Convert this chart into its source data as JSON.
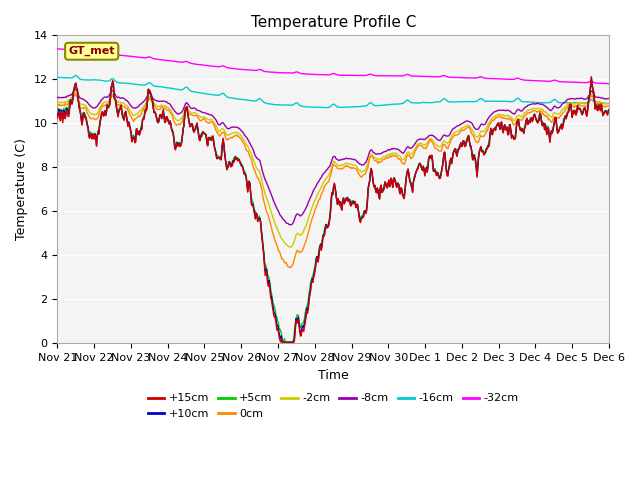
{
  "title": "Temperature Profile C",
  "xlabel": "Time",
  "ylabel": "Temperature (C)",
  "ylim": [
    0,
    14
  ],
  "x_tick_labels": [
    "Nov 21",
    "Nov 22",
    "Nov 23",
    "Nov 24",
    "Nov 25",
    "Nov 26",
    "Nov 27",
    "Nov 28",
    "Nov 29",
    "Nov 30",
    "Dec 1",
    "Dec 2",
    "Dec 3",
    "Dec 4",
    "Dec 5",
    "Dec 6"
  ],
  "series_colors": {
    "+15cm": "#cc0000",
    "+10cm": "#0000cc",
    "+5cm": "#00cc00",
    "0cm": "#ff8800",
    "-2cm": "#cccc00",
    "-8cm": "#9900aa",
    "-16cm": "#00cccc",
    "-32cm": "#ff00ff"
  },
  "legend_order": [
    "+15cm",
    "+10cm",
    "+5cm",
    "0cm",
    "-2cm",
    "-8cm",
    "-16cm",
    "-32cm"
  ],
  "gt_met_label": "GT_met",
  "gt_met_bg": "#ffff99",
  "gt_met_border": "#888800",
  "background_color": "#ffffff",
  "plot_bg_color": "#e8e8e8",
  "title_fontsize": 11,
  "axis_label_fontsize": 9,
  "tick_label_fontsize": 8,
  "legend_fontsize": 8
}
